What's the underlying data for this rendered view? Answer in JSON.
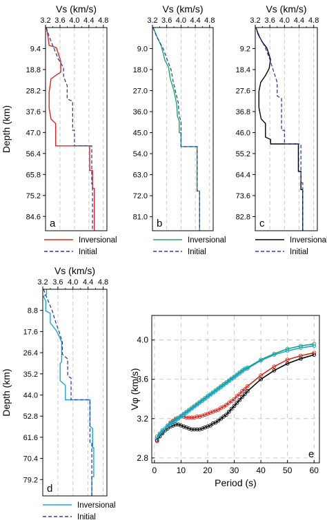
{
  "colors": {
    "red": "#e0231c",
    "green": "#1aa66b",
    "black": "#000000",
    "cyan": "#1aa3d6",
    "blue_dashed": "#2a3fa5",
    "grid": "#bbbbbb"
  },
  "chart_data": [
    {
      "panel": "a",
      "type": "line",
      "xlabel": "Vs (km/s)",
      "ylabel": "Depth (km)",
      "xticks": [
        "3.2",
        "3.6",
        "4.0",
        "4.4",
        "4.8"
      ],
      "yticks": [
        "9.4",
        "18.8",
        "28.2",
        "37.6",
        "47.0",
        "56.4",
        "65.8",
        "75.2",
        "84.6"
      ],
      "xlim": [
        3.2,
        4.9
      ],
      "ylim": [
        0,
        91
      ],
      "grid": "x dashed",
      "legend": {
        "position": "bottom",
        "entries": [
          "Inversional",
          "Initial"
        ]
      },
      "series": [
        {
          "name": "Inversional",
          "color": "red",
          "style": "solid",
          "x": [
            3.22,
            3.26,
            3.3,
            3.5,
            3.62,
            3.62,
            3.52,
            3.35,
            3.3,
            3.3,
            3.35,
            3.48,
            3.48,
            4.42,
            4.42,
            4.5,
            4.5,
            4.55,
            4.55
          ],
          "y": [
            0,
            3,
            8,
            9,
            15,
            20,
            21,
            23,
            29,
            36,
            41,
            43,
            53,
            53,
            64,
            64,
            72,
            72,
            91
          ]
        },
        {
          "name": "Initial",
          "color": "blue",
          "style": "dashed",
          "x": [
            3.22,
            3.3,
            3.45,
            3.55,
            3.7,
            3.7,
            3.8,
            3.8,
            3.95,
            3.95,
            4.0,
            4.0,
            4.48,
            4.48,
            4.5,
            4.5
          ],
          "y": [
            0,
            4,
            10,
            14,
            18,
            22,
            26,
            32,
            33,
            46,
            46,
            53,
            53,
            70,
            70,
            91
          ]
        }
      ]
    },
    {
      "panel": "b",
      "type": "line",
      "xlabel": "Vs (km/s)",
      "ylabel": "",
      "xticks": [
        "3.2",
        "3.6",
        "4.0",
        "4.4",
        "4.8"
      ],
      "yticks": [
        "9.0",
        "18.0",
        "27.0",
        "36.0",
        "45.0",
        "54.0",
        "63.0",
        "72.0",
        "81.0"
      ],
      "xlim": [
        3.2,
        4.9
      ],
      "ylim": [
        0,
        87
      ],
      "grid": "x dashed",
      "legend": {
        "position": "bottom",
        "entries": [
          "Inversional",
          "Initial"
        ]
      },
      "series": [
        {
          "name": "Inversional",
          "color": "green",
          "style": "solid",
          "x": [
            3.22,
            3.3,
            3.45,
            3.55,
            3.65,
            3.7,
            3.8,
            3.88,
            3.9,
            3.95,
            3.95,
            4.0,
            4.0,
            4.45,
            4.45,
            4.52,
            4.52
          ],
          "y": [
            0,
            3,
            8,
            14,
            17,
            22,
            27,
            33,
            38,
            40,
            45,
            45,
            51,
            51,
            70,
            70,
            87
          ]
        },
        {
          "name": "Initial",
          "color": "blue",
          "style": "dashed",
          "x": [
            3.22,
            3.32,
            3.5,
            3.62,
            3.72,
            3.78,
            3.84,
            3.92,
            3.95,
            4.0,
            4.0,
            4.45,
            4.45,
            4.52,
            4.52
          ],
          "y": [
            0,
            4,
            9,
            14,
            18,
            23,
            27,
            32,
            38,
            40,
            51,
            51,
            70,
            70,
            87
          ]
        }
      ]
    },
    {
      "panel": "c",
      "type": "line",
      "xlabel": "Vs (km/s)",
      "ylabel": "",
      "xticks": [
        "3.2",
        "3.6",
        "4.0",
        "4.4",
        "4.8"
      ],
      "yticks": [
        "9.2",
        "18.4",
        "27.6",
        "36.8",
        "46.0",
        "55.2",
        "64.4",
        "73.6",
        "82.8"
      ],
      "xlim": [
        3.2,
        4.9
      ],
      "ylim": [
        0,
        89
      ],
      "grid": "x dashed",
      "legend": {
        "position": "bottom",
        "entries": [
          "Inversional",
          "Initial"
        ]
      },
      "series": [
        {
          "name": "Inversional",
          "color": "black",
          "style": "solid",
          "x": [
            3.22,
            3.28,
            3.38,
            3.52,
            3.62,
            3.58,
            3.48,
            3.35,
            3.3,
            3.3,
            3.36,
            3.48,
            3.48,
            3.62,
            3.62,
            4.38,
            4.38,
            4.45,
            4.45,
            4.5,
            4.5
          ],
          "y": [
            0,
            3,
            6,
            9,
            14,
            18,
            21,
            24,
            28,
            35,
            40,
            42,
            48,
            49,
            51,
            51,
            63,
            63,
            71,
            71,
            89
          ]
        },
        {
          "name": "Initial",
          "color": "blue",
          "style": "dashed",
          "x": [
            3.22,
            3.32,
            3.48,
            3.6,
            3.72,
            3.8,
            3.8,
            3.92,
            3.92,
            4.0,
            4.0,
            4.45,
            4.45,
            4.5,
            4.5
          ],
          "y": [
            0,
            4,
            9,
            14,
            20,
            24,
            30,
            31,
            45,
            45,
            51,
            51,
            68,
            68,
            89
          ]
        }
      ]
    },
    {
      "panel": "d",
      "type": "line",
      "xlabel": "Vs (km/s)",
      "ylabel": "Depth (km)",
      "xticks": [
        "3.2",
        "3.6",
        "4.0",
        "4.4",
        "4.8"
      ],
      "yticks": [
        "8.8",
        "17.6",
        "26.4",
        "35.2",
        "44.0",
        "52.8",
        "61.6",
        "70.4",
        "79.2"
      ],
      "xlim": [
        3.2,
        4.9
      ],
      "ylim": [
        0,
        86
      ],
      "grid": "x dashed",
      "legend": {
        "position": "bottom",
        "entries": [
          "Inversional",
          "Initial"
        ]
      },
      "series": [
        {
          "name": "Inversional",
          "color": "cyan",
          "style": "solid",
          "x": [
            3.3,
            3.3,
            3.22,
            3.28,
            3.28,
            3.4,
            3.4,
            3.55,
            3.62,
            3.7,
            3.7,
            3.66,
            3.66,
            3.8,
            3.8,
            4.45,
            4.45,
            4.52,
            4.52,
            4.55,
            4.55,
            4.5,
            4.5
          ],
          "y": [
            0,
            2,
            3,
            5,
            9,
            10,
            14,
            17,
            19,
            22,
            30,
            31,
            38,
            40,
            46,
            46,
            57,
            58,
            66,
            66,
            78,
            78,
            86
          ]
        },
        {
          "name": "Initial",
          "color": "blue",
          "style": "dashed",
          "x": [
            3.22,
            3.32,
            3.45,
            3.55,
            3.64,
            3.72,
            3.72,
            3.86,
            3.86,
            3.95,
            3.95,
            4.45,
            4.45,
            4.5,
            4.5
          ],
          "y": [
            0,
            4,
            9,
            14,
            18,
            22,
            27,
            29,
            36,
            37,
            46,
            46,
            64,
            64,
            86
          ]
        }
      ]
    },
    {
      "panel": "e",
      "type": "line",
      "xlabel": "Period (s)",
      "ylabel": "Vφ (km/s)",
      "xticks": [
        "0",
        "10",
        "20",
        "30",
        "40",
        "50",
        "60"
      ],
      "yticks": [
        "2.8",
        "3.2",
        "3.6",
        "4.0"
      ],
      "xlim": [
        -1,
        62
      ],
      "ylim": [
        2.75,
        4.25
      ],
      "grid": "both dashed",
      "legend": null,
      "x": [
        1,
        2,
        3,
        4,
        5,
        6,
        7,
        8,
        9,
        10,
        11,
        12,
        13,
        14,
        15,
        16,
        17,
        18,
        19,
        20,
        21,
        22,
        23,
        24,
        25,
        26,
        27,
        28,
        29,
        30,
        31,
        32,
        33,
        34,
        35,
        40,
        45,
        50,
        55,
        60
      ],
      "series": [
        {
          "color": "red",
          "markers": "circle",
          "values": [
            2.97,
            3.02,
            3.06,
            3.1,
            3.13,
            3.16,
            3.18,
            3.2,
            3.21,
            3.22,
            3.22,
            3.21,
            3.21,
            3.21,
            3.21,
            3.22,
            3.22,
            3.23,
            3.24,
            3.25,
            3.26,
            3.27,
            3.28,
            3.29,
            3.31,
            3.32,
            3.34,
            3.36,
            3.38,
            3.4,
            3.43,
            3.45,
            3.48,
            3.5,
            3.53,
            3.64,
            3.73,
            3.8,
            3.84,
            3.87
          ]
        },
        {
          "color": "black",
          "markers": "circle",
          "values": [
            2.98,
            3.02,
            3.05,
            3.08,
            3.1,
            3.12,
            3.13,
            3.14,
            3.14,
            3.13,
            3.12,
            3.11,
            3.1,
            3.09,
            3.09,
            3.09,
            3.09,
            3.1,
            3.11,
            3.12,
            3.13,
            3.15,
            3.16,
            3.18,
            3.2,
            3.22,
            3.24,
            3.27,
            3.3,
            3.33,
            3.36,
            3.39,
            3.42,
            3.45,
            3.48,
            3.6,
            3.69,
            3.76,
            3.81,
            3.85
          ]
        },
        {
          "color": "green",
          "markers": "circle",
          "values": [
            3.02,
            3.05,
            3.08,
            3.1,
            3.13,
            3.15,
            3.17,
            3.19,
            3.21,
            3.23,
            3.25,
            3.27,
            3.29,
            3.31,
            3.33,
            3.35,
            3.37,
            3.39,
            3.41,
            3.43,
            3.45,
            3.47,
            3.49,
            3.51,
            3.53,
            3.55,
            3.57,
            3.59,
            3.61,
            3.63,
            3.65,
            3.67,
            3.69,
            3.71,
            3.72,
            3.8,
            3.86,
            3.91,
            3.94,
            3.96
          ]
        },
        {
          "color": "cyan",
          "markers": "circle",
          "values": [
            3.0,
            3.04,
            3.07,
            3.1,
            3.12,
            3.14,
            3.16,
            3.18,
            3.2,
            3.22,
            3.24,
            3.26,
            3.28,
            3.3,
            3.32,
            3.34,
            3.36,
            3.38,
            3.4,
            3.42,
            3.44,
            3.46,
            3.48,
            3.5,
            3.52,
            3.54,
            3.56,
            3.58,
            3.6,
            3.62,
            3.64,
            3.66,
            3.68,
            3.7,
            3.71,
            3.79,
            3.85,
            3.89,
            3.92,
            3.94
          ]
        }
      ]
    }
  ]
}
